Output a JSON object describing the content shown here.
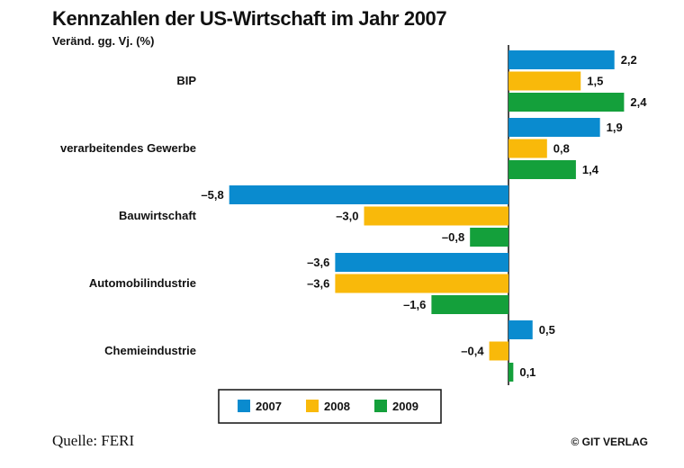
{
  "chart_data": {
    "type": "bar",
    "orientation": "horizontal",
    "title": "Kennzahlen der US-Wirtschaft im Jahr 2007",
    "ylabel": "Veränd. gg. Vj. (%)",
    "xlim": [
      -6.0,
      2.6
    ],
    "categories": [
      "BIP",
      "verarbeitendes Gewerbe",
      "Bauwirtschaft",
      "Automobilindustrie",
      "Chemieindustrie"
    ],
    "series": [
      {
        "name": "2007",
        "color": "#0a8bcf",
        "values": [
          2.2,
          1.9,
          -5.8,
          -3.6,
          0.5
        ],
        "labels": [
          "2,2",
          "1,9",
          "–5,8",
          "–3,6",
          "0,5"
        ]
      },
      {
        "name": "2008",
        "color": "#f9b90a",
        "values": [
          1.5,
          0.8,
          -3.0,
          -3.6,
          -0.4
        ],
        "labels": [
          "1,5",
          "0,8",
          "–3,0",
          "–3,6",
          "–0,4"
        ]
      },
      {
        "name": "2009",
        "color": "#14a03b",
        "values": [
          2.4,
          1.4,
          -0.8,
          -1.6,
          0.1
        ],
        "labels": [
          "2,4",
          "1,4",
          "–0,8",
          "–1,6",
          "0,1"
        ]
      }
    ],
    "legend": "bottom-center"
  },
  "footer": {
    "source": "Quelle: FERI",
    "credit": "© GIT VERLAG"
  }
}
